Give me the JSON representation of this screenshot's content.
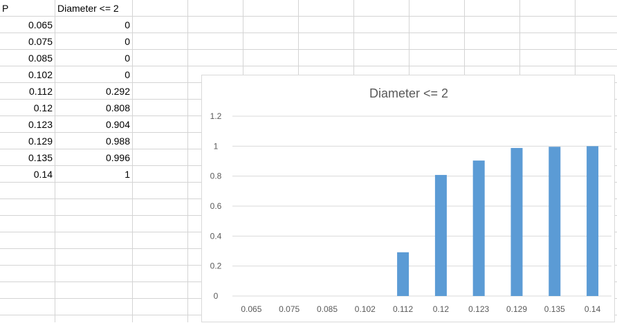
{
  "sheet": {
    "headers": [
      "P",
      "Diameter <= 2"
    ],
    "rows": [
      [
        "0.065",
        "0"
      ],
      [
        "0.075",
        "0"
      ],
      [
        "0.085",
        "0"
      ],
      [
        "0.102",
        "0"
      ],
      [
        "0.112",
        "0.292"
      ],
      [
        "0.12",
        "0.808"
      ],
      [
        "0.123",
        "0.904"
      ],
      [
        "0.129",
        "0.988"
      ],
      [
        "0.135",
        "0.996"
      ],
      [
        "0.14",
        "1"
      ]
    ]
  },
  "chart_data": {
    "type": "bar",
    "title": "Diameter <= 2",
    "categories": [
      "0.065",
      "0.075",
      "0.085",
      "0.102",
      "0.112",
      "0.12",
      "0.123",
      "0.129",
      "0.135",
      "0.14"
    ],
    "values": [
      0,
      0,
      0,
      0,
      0.292,
      0.808,
      0.904,
      0.988,
      0.996,
      1
    ],
    "ylim": [
      0,
      1.2
    ],
    "yticks": [
      "0",
      "0.2",
      "0.4",
      "0.6",
      "0.8",
      "1",
      "1.2"
    ],
    "grid": true,
    "legend": "none",
    "bar_color": "#5b9bd5",
    "gridline_color": "#d9d9d9",
    "label_color": "#595959"
  }
}
